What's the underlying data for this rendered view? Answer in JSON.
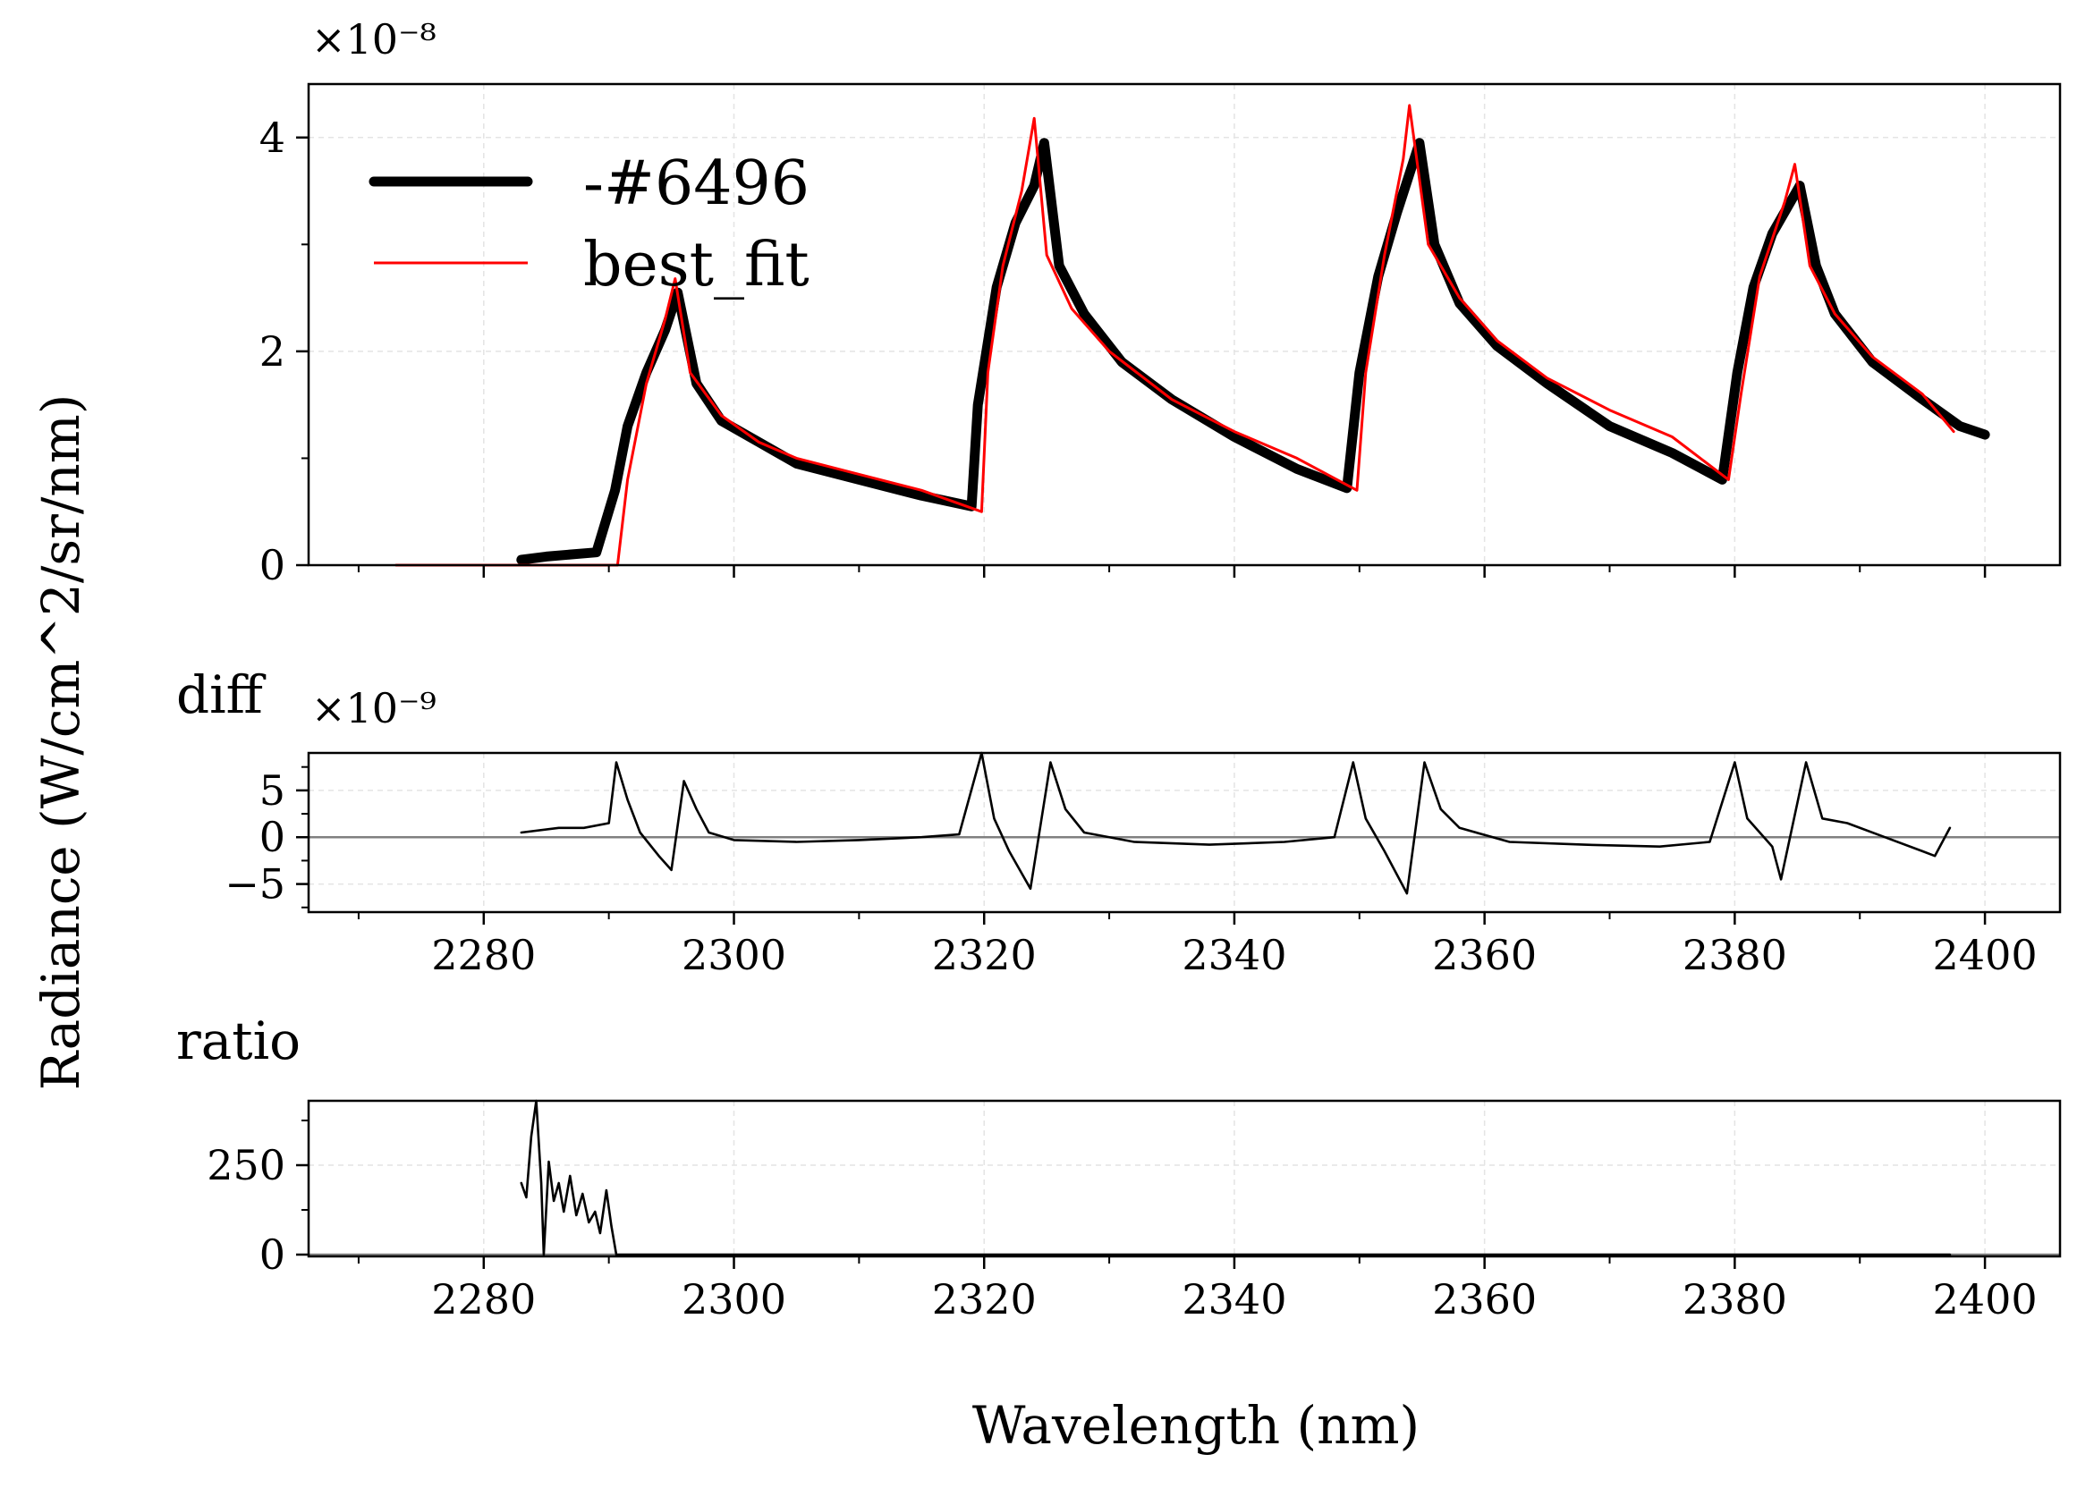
{
  "chart_data": [
    {
      "type": "line",
      "panel": "main",
      "title": "",
      "xlabel": "",
      "ylabel": "Radiance (W/cm^2/sr/nm)",
      "y_exponent_label": "×10⁻⁸",
      "y_scale": 1e-08,
      "xlim": [
        2266,
        2406
      ],
      "ylim": [
        0,
        4.5
      ],
      "yticks": [
        0,
        2,
        4
      ],
      "ytick_labels": [
        "0",
        "2",
        "4"
      ],
      "grid": true,
      "legend_position": "upper-left",
      "series": [
        {
          "name": "-#6496",
          "color": "#000000",
          "points": [
            [
              2283,
              0.05
            ],
            [
              2285,
              0.08
            ],
            [
              2287,
              0.1
            ],
            [
              2289,
              0.12
            ],
            [
              2290.5,
              0.7
            ],
            [
              2291.5,
              1.3
            ],
            [
              2293,
              1.8
            ],
            [
              2294.5,
              2.2
            ],
            [
              2295.5,
              2.55
            ],
            [
              2297,
              1.7
            ],
            [
              2299,
              1.35
            ],
            [
              2302,
              1.15
            ],
            [
              2305,
              0.95
            ],
            [
              2310,
              0.8
            ],
            [
              2315,
              0.65
            ],
            [
              2319,
              0.55
            ],
            [
              2319.5,
              1.5
            ],
            [
              2321,
              2.6
            ],
            [
              2322.5,
              3.2
            ],
            [
              2324,
              3.55
            ],
            [
              2324.8,
              3.95
            ],
            [
              2326,
              2.8
            ],
            [
              2328,
              2.35
            ],
            [
              2331,
              1.9
            ],
            [
              2335,
              1.55
            ],
            [
              2340,
              1.2
            ],
            [
              2345,
              0.9
            ],
            [
              2349,
              0.72
            ],
            [
              2350,
              1.8
            ],
            [
              2351.5,
              2.7
            ],
            [
              2353,
              3.3
            ],
            [
              2354.8,
              3.95
            ],
            [
              2356,
              3.0
            ],
            [
              2358,
              2.45
            ],
            [
              2361,
              2.05
            ],
            [
              2365,
              1.7
            ],
            [
              2370,
              1.3
            ],
            [
              2375,
              1.05
            ],
            [
              2379,
              0.8
            ],
            [
              2380.2,
              1.8
            ],
            [
              2381.5,
              2.6
            ],
            [
              2383,
              3.1
            ],
            [
              2385.2,
              3.55
            ],
            [
              2386.5,
              2.8
            ],
            [
              2388,
              2.35
            ],
            [
              2391,
              1.9
            ],
            [
              2395,
              1.55
            ],
            [
              2398,
              1.3
            ],
            [
              2400,
              1.22
            ]
          ]
        },
        {
          "name": "best_fit",
          "color": "#ff0000",
          "points": [
            [
              2273,
              0.0
            ],
            [
              2290,
              0.0
            ],
            [
              2290.7,
              0.0
            ],
            [
              2291.5,
              0.8
            ],
            [
              2293,
              1.7
            ],
            [
              2294.5,
              2.3
            ],
            [
              2295.3,
              2.68
            ],
            [
              2296.5,
              1.8
            ],
            [
              2299,
              1.4
            ],
            [
              2302,
              1.15
            ],
            [
              2305,
              1.0
            ],
            [
              2310,
              0.85
            ],
            [
              2315,
              0.7
            ],
            [
              2319.8,
              0.5
            ],
            [
              2320.3,
              1.8
            ],
            [
              2321.5,
              2.8
            ],
            [
              2323,
              3.5
            ],
            [
              2324,
              4.18
            ],
            [
              2325,
              2.9
            ],
            [
              2327,
              2.4
            ],
            [
              2330,
              2.0
            ],
            [
              2335,
              1.55
            ],
            [
              2340,
              1.25
            ],
            [
              2345,
              1.0
            ],
            [
              2349.8,
              0.7
            ],
            [
              2350.5,
              1.8
            ],
            [
              2352,
              2.9
            ],
            [
              2353.5,
              3.8
            ],
            [
              2354,
              4.3
            ],
            [
              2355.5,
              3.0
            ],
            [
              2358,
              2.5
            ],
            [
              2361,
              2.1
            ],
            [
              2365,
              1.75
            ],
            [
              2370,
              1.45
            ],
            [
              2375,
              1.2
            ],
            [
              2379.5,
              0.8
            ],
            [
              2380.5,
              1.6
            ],
            [
              2382,
              2.7
            ],
            [
              2384,
              3.4
            ],
            [
              2384.8,
              3.75
            ],
            [
              2386,
              2.8
            ],
            [
              2388,
              2.35
            ],
            [
              2391,
              1.95
            ],
            [
              2395,
              1.6
            ],
            [
              2397.5,
              1.25
            ]
          ]
        }
      ]
    },
    {
      "type": "line",
      "panel": "diff",
      "title": "diff",
      "y_exponent_label": "×10⁻⁹",
      "y_scale": 1e-09,
      "xlim": [
        2266,
        2406
      ],
      "ylim": [
        -8,
        9
      ],
      "yticks": [
        -5,
        0,
        5
      ],
      "ytick_labels": [
        "−5",
        "0",
        "5"
      ],
      "xticks": [
        2280,
        2300,
        2320,
        2340,
        2360,
        2380,
        2400
      ],
      "xtick_labels": [
        "2280",
        "2300",
        "2320",
        "2340",
        "2360",
        "2380",
        "2400"
      ],
      "grid": true,
      "zero_line": true,
      "series": [
        {
          "color": "#000000",
          "points": [
            [
              2283,
              0.5
            ],
            [
              2286,
              1.0
            ],
            [
              2288,
              1.0
            ],
            [
              2290,
              1.5
            ],
            [
              2290.6,
              8.0
            ],
            [
              2291.5,
              4.0
            ],
            [
              2292.5,
              0.5
            ],
            [
              2294,
              -2.0
            ],
            [
              2295,
              -3.5
            ],
            [
              2296,
              6.0
            ],
            [
              2297,
              3.0
            ],
            [
              2298,
              0.5
            ],
            [
              2300,
              -0.3
            ],
            [
              2305,
              -0.5
            ],
            [
              2310,
              -0.3
            ],
            [
              2315,
              0.0
            ],
            [
              2318,
              0.3
            ],
            [
              2319.8,
              9.0
            ],
            [
              2320.8,
              2.0
            ],
            [
              2322,
              -1.5
            ],
            [
              2323.7,
              -5.5
            ],
            [
              2325.3,
              8.0
            ],
            [
              2326.5,
              3.0
            ],
            [
              2328,
              0.5
            ],
            [
              2332,
              -0.5
            ],
            [
              2338,
              -0.8
            ],
            [
              2344,
              -0.5
            ],
            [
              2348,
              0.0
            ],
            [
              2349.5,
              8.0
            ],
            [
              2350.5,
              2.0
            ],
            [
              2352,
              -1.5
            ],
            [
              2353.8,
              -6.0
            ],
            [
              2355.2,
              8.0
            ],
            [
              2356.5,
              3.0
            ],
            [
              2358,
              1.0
            ],
            [
              2362,
              -0.5
            ],
            [
              2368,
              -0.8
            ],
            [
              2374,
              -1.0
            ],
            [
              2378,
              -0.5
            ],
            [
              2380,
              8.0
            ],
            [
              2381,
              2.0
            ],
            [
              2383,
              -1.0
            ],
            [
              2383.7,
              -4.5
            ],
            [
              2385.7,
              8.0
            ],
            [
              2387,
              2.0
            ],
            [
              2389,
              1.5
            ],
            [
              2392,
              0.0
            ],
            [
              2395,
              -1.5
            ],
            [
              2396,
              -2.0
            ],
            [
              2397.2,
              1.0
            ]
          ]
        }
      ]
    },
    {
      "type": "line",
      "panel": "ratio",
      "title": "ratio",
      "xlabel": "Wavelength (nm)",
      "xlim": [
        2266,
        2406
      ],
      "ylim": [
        -5,
        430
      ],
      "yticks": [
        0,
        250
      ],
      "ytick_labels": [
        "0",
        "250"
      ],
      "xticks": [
        2280,
        2300,
        2320,
        2340,
        2360,
        2380,
        2400
      ],
      "xtick_labels": [
        "2280",
        "2300",
        "2320",
        "2340",
        "2360",
        "2380",
        "2400"
      ],
      "grid": true,
      "zero_line": true,
      "series": [
        {
          "color": "#000000",
          "points": [
            [
              2283,
              200
            ],
            [
              2283.4,
              160
            ],
            [
              2283.8,
              330
            ],
            [
              2284.2,
              430
            ],
            [
              2284.6,
              200
            ],
            [
              2284.8,
              0
            ],
            [
              2285.2,
              260
            ],
            [
              2285.6,
              150
            ],
            [
              2286,
              200
            ],
            [
              2286.4,
              120
            ],
            [
              2286.9,
              220
            ],
            [
              2287.4,
              110
            ],
            [
              2287.9,
              170
            ],
            [
              2288.4,
              90
            ],
            [
              2288.9,
              120
            ],
            [
              2289.3,
              60
            ],
            [
              2289.8,
              180
            ],
            [
              2290.2,
              80
            ],
            [
              2290.6,
              0
            ],
            [
              2300,
              0
            ],
            [
              2397.2,
              0
            ]
          ]
        }
      ]
    }
  ]
}
